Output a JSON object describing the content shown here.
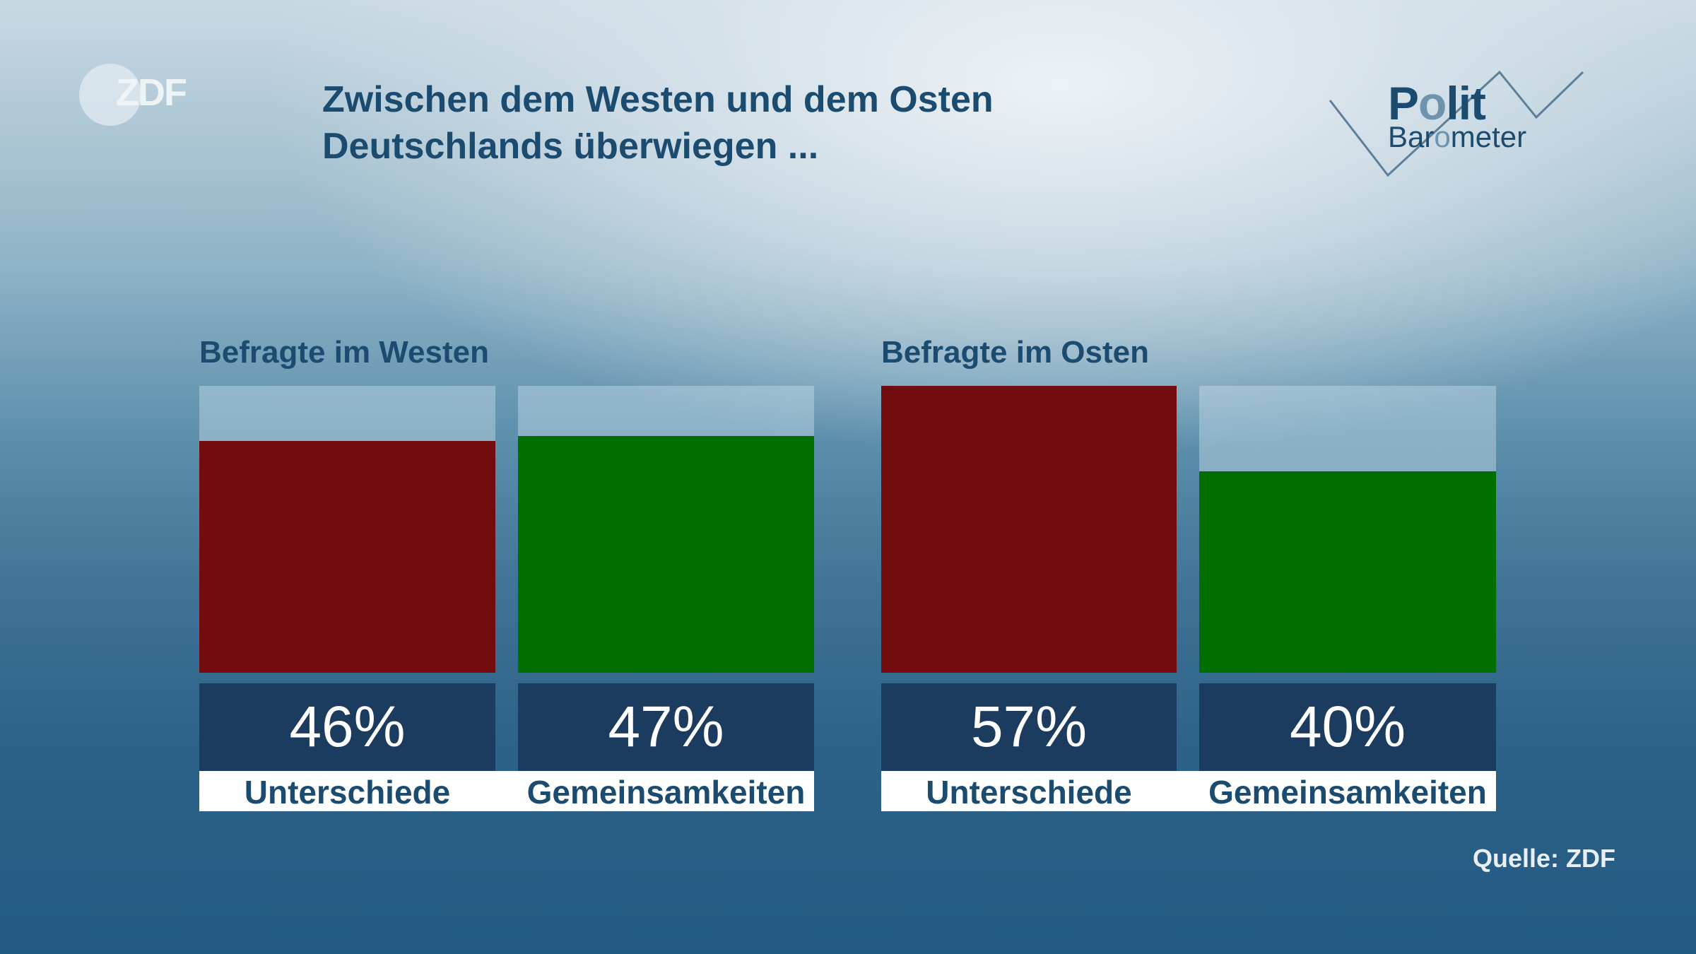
{
  "logo": {
    "zdf": "ZDF",
    "polit": [
      "P",
      "o",
      "lit"
    ],
    "barometer": [
      "Bar",
      "o",
      "meter"
    ]
  },
  "title": {
    "line1": "Zwischen dem Westen und dem Osten",
    "line2": "Deutschlands überwiegen ..."
  },
  "source": "Quelle: ZDF",
  "colors": {
    "unterschiede": "#720c0e",
    "gemeinsamkeiten": "#006f00",
    "value_box": "#1b3b5f",
    "text": "#1b4c70"
  },
  "chart_data": {
    "type": "bar",
    "title": "Zwischen dem Westen und dem Osten Deutschlands überwiegen ...",
    "xlabel": "",
    "ylabel": "",
    "ylim": [
      0,
      57
    ],
    "grid": false,
    "unit": "%",
    "groups": [
      {
        "name": "Befragte im Westen",
        "bars": [
          {
            "category": "Unterschiede",
            "value": 46,
            "label": "46%",
            "color": "#720c0e"
          },
          {
            "category": "Gemeinsamkeiten",
            "value": 47,
            "label": "47%",
            "color": "#006f00"
          }
        ]
      },
      {
        "name": "Befragte im Osten",
        "bars": [
          {
            "category": "Unterschiede",
            "value": 57,
            "label": "57%",
            "color": "#720c0e"
          },
          {
            "category": "Gemeinsamkeiten",
            "value": 40,
            "label": "40%",
            "color": "#006f00"
          }
        ]
      }
    ]
  }
}
